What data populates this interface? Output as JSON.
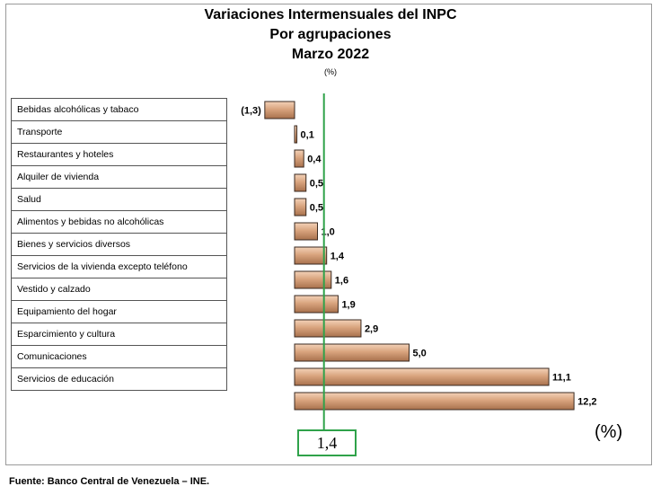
{
  "chart_data": {
    "type": "bar",
    "orientation": "horizontal",
    "title": "Variaciones Intermensuales del INPC",
    "subtitle": "Por agrupaciones",
    "period": "Marzo 2022",
    "units_note": "(%)",
    "unit_label": "(%)",
    "categories": [
      "Bebidas alcohólicas y tabaco",
      "Transporte",
      "Restaurantes y hoteles",
      "Alquiler de vivienda",
      "Salud",
      "Alimentos y bebidas no alcohólicas",
      "Bienes y servicios diversos",
      "Servicios de la vivienda excepto teléfono",
      "Vestido y calzado",
      "Equipamiento del hogar",
      "Esparcimiento y cultura",
      "Comunicaciones",
      "Servicios de educación"
    ],
    "values": [
      -1.3,
      0.1,
      0.4,
      0.5,
      0.5,
      1.0,
      1.4,
      1.6,
      1.9,
      2.9,
      5.0,
      11.1,
      12.2
    ],
    "value_labels": [
      "(1,3)",
      "0,1",
      "0,4",
      "0,5",
      "0,5",
      "1,0",
      "1,4",
      "1,6",
      "1,9",
      "2,9",
      "5,0",
      "11,1",
      "12,2"
    ],
    "reference_line": {
      "value": 1.4,
      "label": "1,4",
      "color": "#2fa24a"
    },
    "bar_color": "#d9a47e",
    "xlim": [
      -1.6,
      12.6
    ],
    "grid": false,
    "legend": "none"
  },
  "source": "Fuente: Banco Central de Venezuela – INE."
}
